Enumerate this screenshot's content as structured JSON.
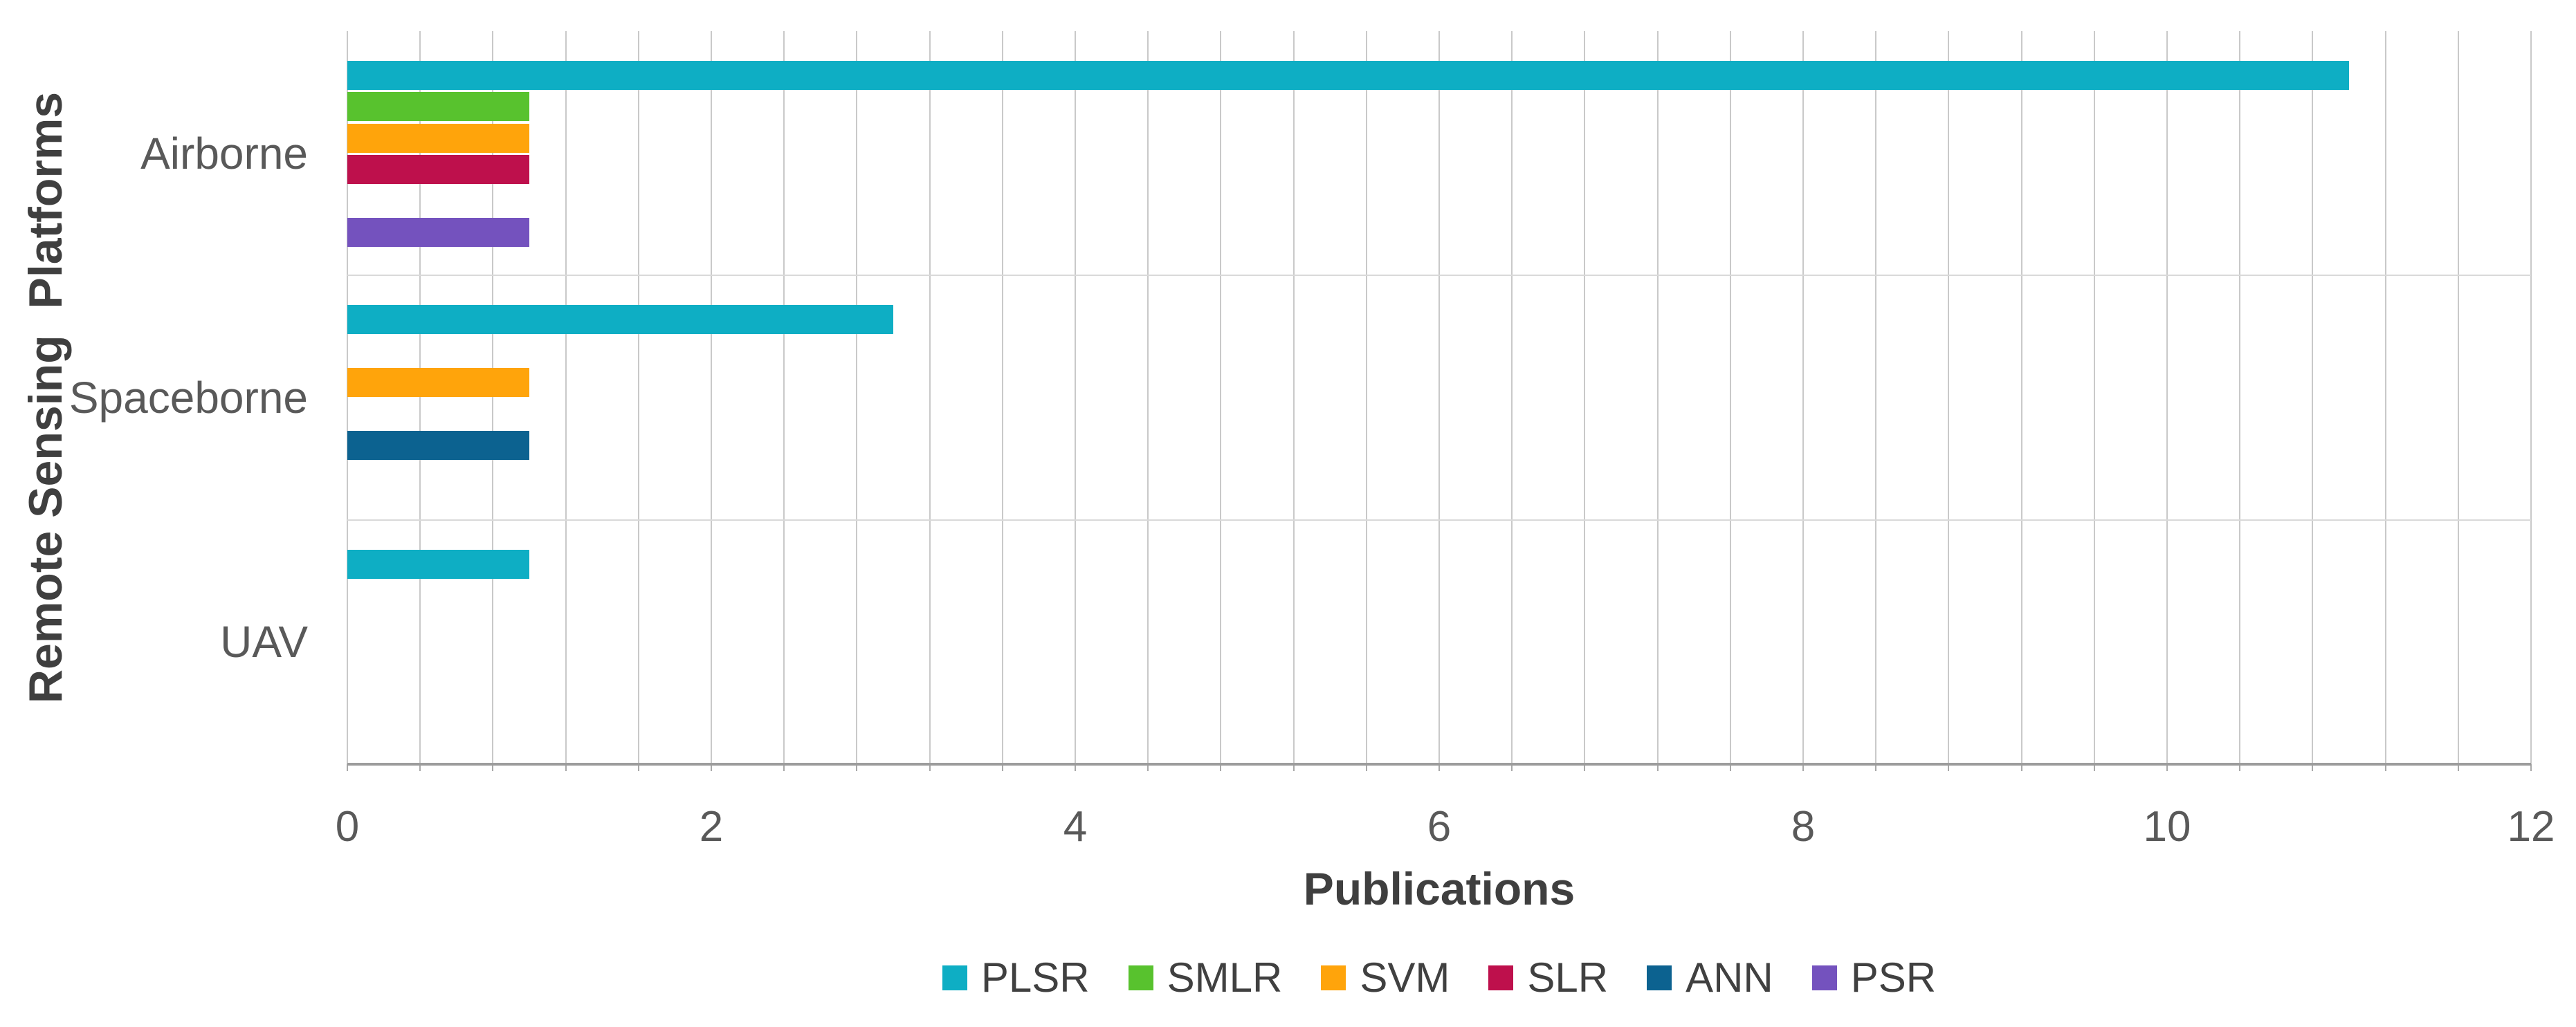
{
  "chart_data": {
    "type": "bar",
    "orientation": "horizontal",
    "title": "",
    "xlabel": "Publications",
    "ylabel": "Remote Sensing  Platforms",
    "categories": [
      "Airborne",
      "Spaceborne",
      "UAV"
    ],
    "series": [
      {
        "name": "PLSR",
        "color": "#0eaec4",
        "values": [
          11,
          3,
          1
        ]
      },
      {
        "name": "SMLR",
        "color": "#58c22e",
        "values": [
          1,
          0,
          0
        ]
      },
      {
        "name": "SVM",
        "color": "#ffa40b",
        "values": [
          1,
          1,
          0
        ]
      },
      {
        "name": "SLR",
        "color": "#be104c",
        "values": [
          1,
          0,
          0
        ]
      },
      {
        "name": "ANN",
        "color": "#0c6290",
        "values": [
          0,
          1,
          0
        ]
      },
      {
        "name": "PSR",
        "color": "#7452be",
        "values": [
          1,
          0,
          0
        ]
      }
    ],
    "xlim": [
      0,
      12
    ],
    "x_ticks": [
      "0",
      "2",
      "4",
      "6",
      "8",
      "10",
      "12"
    ],
    "x_tick_step": 2,
    "minor_grid_step": 0.4,
    "grid": true,
    "legend_position": "bottom",
    "colors": {
      "gridline": "#c9c9c9",
      "band_separator": "#d9d9d9",
      "axis_line": "#9c9c9c",
      "tick_label": "#595959",
      "axis_title": "#3f3f3f",
      "legend_text": "#404040"
    }
  }
}
